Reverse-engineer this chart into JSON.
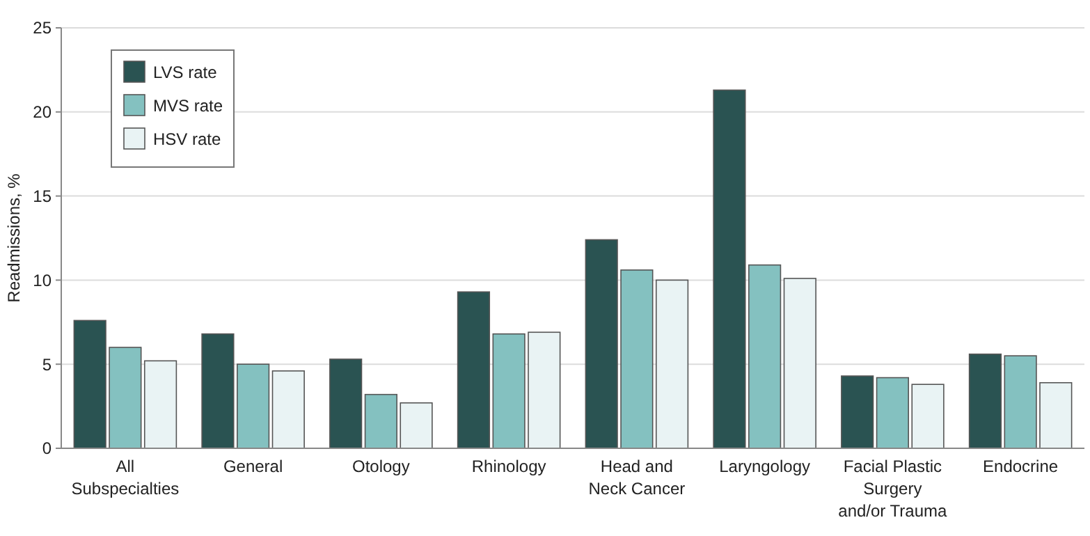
{
  "chart_data": {
    "type": "bar",
    "ylabel": "Readmissions, %",
    "categories": [
      "All\nSubspecialties",
      "General",
      "Otology",
      "Rhinology",
      "Head and\nNeck Cancer",
      "Laryngology",
      "Facial Plastic\nSurgery\nand/or Trauma",
      "Endocrine"
    ],
    "series": [
      {
        "name": "LVS rate",
        "color": "#2a5352",
        "values": [
          7.6,
          6.8,
          5.3,
          9.3,
          12.4,
          21.3,
          4.3,
          5.6
        ]
      },
      {
        "name": "MVS rate",
        "color": "#84c1c0",
        "values": [
          6.0,
          5.0,
          3.2,
          6.8,
          10.6,
          10.9,
          4.2,
          5.5
        ]
      },
      {
        "name": "HSV rate",
        "color": "#e9f3f4",
        "values": [
          5.2,
          4.6,
          2.7,
          6.9,
          10.0,
          10.1,
          3.8,
          3.9
        ]
      }
    ],
    "ylim": [
      0,
      25
    ],
    "yticks": [
      0,
      5,
      10,
      15,
      20,
      25
    ],
    "grid": "y",
    "legend": "top left"
  }
}
